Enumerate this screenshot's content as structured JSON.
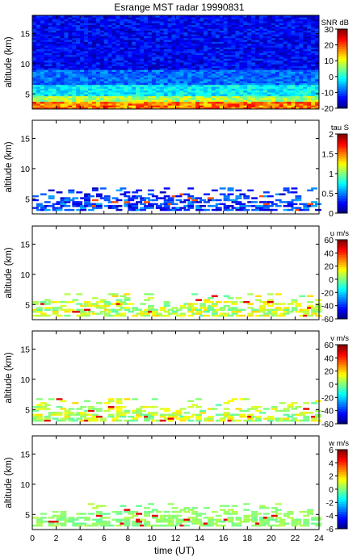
{
  "chart_data": {
    "title": "Esrange MST radar 19990831",
    "xlabel": "time (UT)",
    "xlim": [
      0,
      24
    ],
    "x_ticks": [
      "0",
      "2",
      "4",
      "6",
      "8",
      "10",
      "12",
      "14",
      "16",
      "18",
      "20",
      "22",
      "24"
    ],
    "type": "heatmap",
    "panels": [
      {
        "id": "snr",
        "ylabel": "altitude (km)",
        "ylim": [
          2.5,
          18
        ],
        "y_ticks": [
          "5",
          "10",
          "15"
        ],
        "colorbar_label": "SNR dB",
        "color_range": [
          -20,
          30
        ],
        "colorbar_ticks": [
          "30",
          "20",
          "10",
          "0",
          "-10",
          "-20"
        ],
        "coverage": "full",
        "description_values": "SNR decreasing with altitude: ~10-25 dB at 3-5 km, ~-5 to 0 dB at 6-8 km, ~-15 dB above 10 km"
      },
      {
        "id": "tau",
        "ylabel": "altitude (km)",
        "ylim": [
          2.5,
          18
        ],
        "y_ticks": [
          "5",
          "10",
          "15"
        ],
        "colorbar_label": "tau S",
        "color_range": [
          0,
          2
        ],
        "colorbar_ticks": [
          "2",
          "1.5",
          "1",
          "0.5",
          "0"
        ],
        "coverage": "sparse",
        "description_values": "mostly 0.1-0.6 s at 3-6 km"
      },
      {
        "id": "u",
        "ylabel": "altitude (km)",
        "ylim": [
          2.5,
          18
        ],
        "y_ticks": [
          "5",
          "10",
          "15"
        ],
        "colorbar_label": "u m/s",
        "color_range": [
          -60,
          60
        ],
        "colorbar_ticks": [
          "60",
          "40",
          "20",
          "0",
          "-20",
          "-40",
          "-60"
        ],
        "coverage": "sparse",
        "description_values": "mostly 0-20 m/s at 3-6 km"
      },
      {
        "id": "v",
        "ylabel": "altitude (km)",
        "ylim": [
          2.5,
          18
        ],
        "y_ticks": [
          "5",
          "10",
          "15"
        ],
        "colorbar_label": "v m/s",
        "color_range": [
          -60,
          60
        ],
        "colorbar_ticks": [
          "60",
          "40",
          "20",
          "0",
          "-20",
          "-40",
          "-60"
        ],
        "coverage": "sparse",
        "description_values": "mostly 0-20 m/s at 3-6 km"
      },
      {
        "id": "w",
        "ylabel": "altitude (km)",
        "ylim": [
          2.5,
          18
        ],
        "y_ticks": [
          "5",
          "10",
          "15"
        ],
        "colorbar_label": "w m/s",
        "color_range": [
          -6,
          6
        ],
        "colorbar_ticks": [
          "6",
          "4",
          "2",
          "0",
          "-2",
          "-4",
          "-6"
        ],
        "coverage": "sparse",
        "description_values": "mostly ~0 to 0.5 m/s at 3-6 km"
      }
    ]
  }
}
